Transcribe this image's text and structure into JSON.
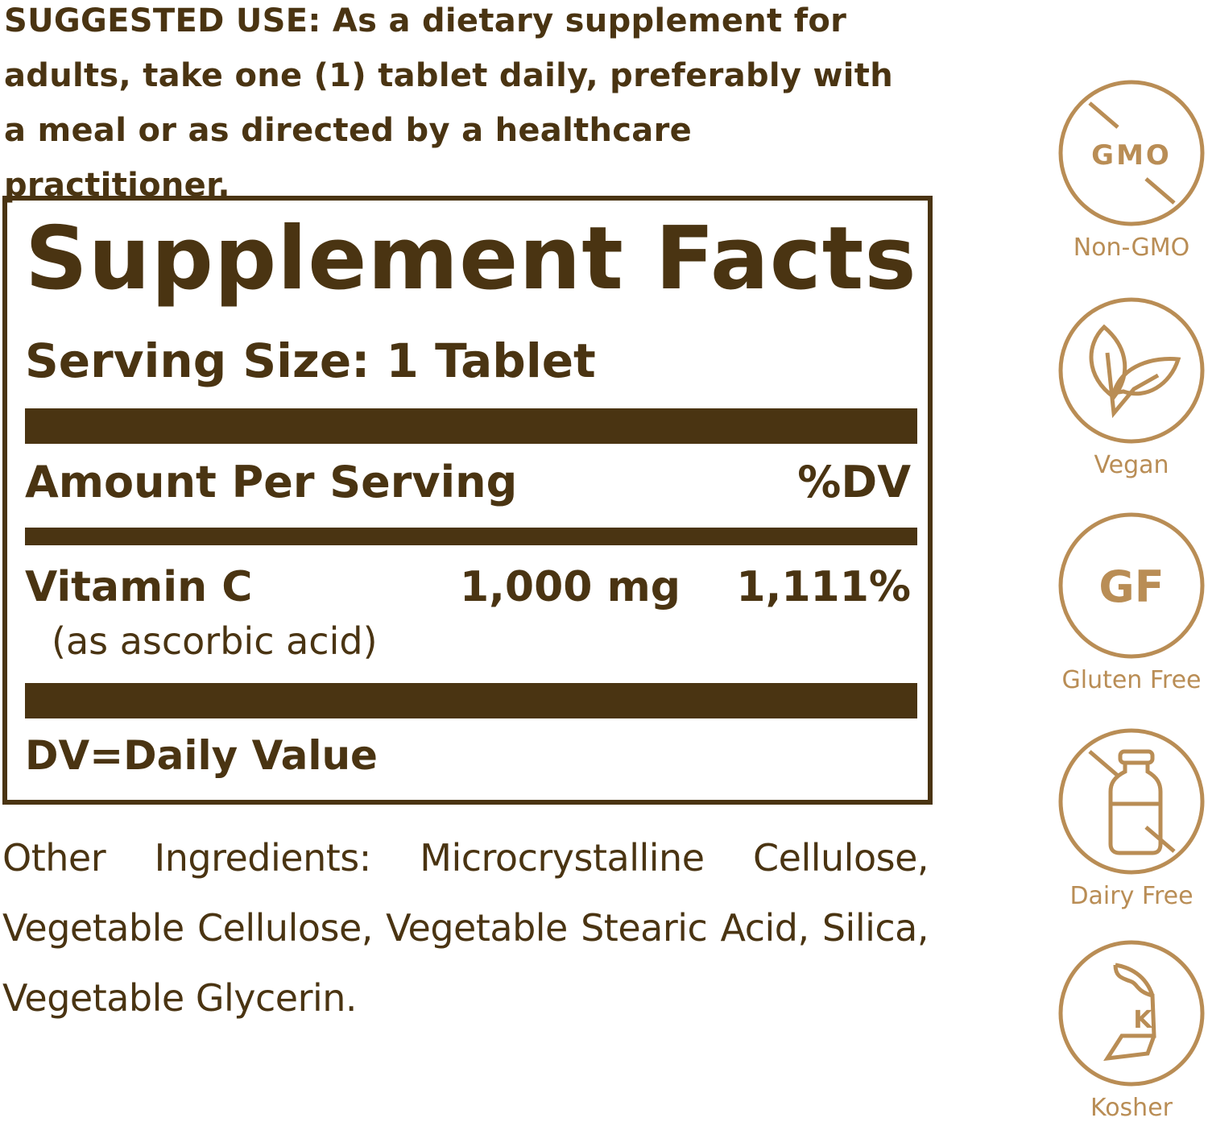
{
  "suggested_use": "SUGGESTED USE: As a dietary supplement for adults, take one (1) tablet daily, preferably with a meal or as directed by a healthcare practitioner.",
  "facts": {
    "title": "Supplement Facts",
    "serving_size": "Serving Size: 1 Tablet",
    "amount_header": "Amount Per Serving",
    "dv_header": "%DV",
    "nutrients": [
      {
        "name": "Vitamin C",
        "source": "(as ascorbic acid)",
        "amount": "1,000 mg",
        "dv": "1,111%"
      }
    ],
    "footnote": "DV=Daily Value"
  },
  "other_ingredients": "Other Ingredients: Microcrystalline Cellulose, Vegetable Cellulose, Vegetable Stearic Acid, Silica, Vegetable Glycerin.",
  "badges": [
    {
      "label": "Non-GMO",
      "icon": "gmo-crossed-icon",
      "text": "GMO"
    },
    {
      "label": "Vegan",
      "icon": "leaf-icon"
    },
    {
      "label": "Gluten Free",
      "icon": "gf-icon",
      "text": "GF"
    },
    {
      "label": "Dairy Free",
      "icon": "milk-bottle-crossed-icon"
    },
    {
      "label": "Kosher",
      "icon": "kosher-icon",
      "text": "K"
    }
  ],
  "colors": {
    "text": "#4a3412",
    "badge": "#b98d55"
  }
}
